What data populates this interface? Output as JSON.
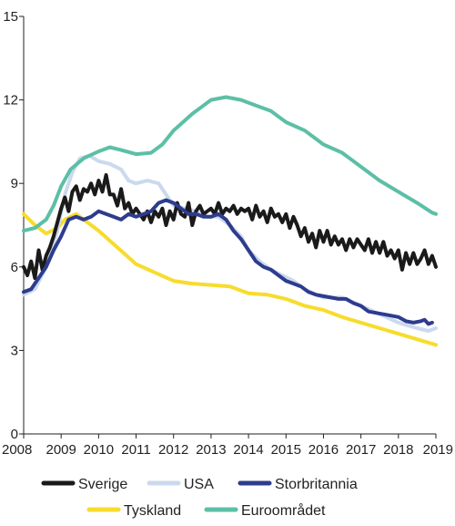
{
  "chart_data": {
    "type": "line",
    "title": "",
    "xlabel": "",
    "ylabel": "",
    "xlim": [
      2008,
      2019
    ],
    "ylim": [
      0,
      15
    ],
    "x_ticks": [
      "2008",
      "2009",
      "2010",
      "2011",
      "2012",
      "2013",
      "2014",
      "2015",
      "2016",
      "2017",
      "2018",
      "2019"
    ],
    "y_ticks": [
      "0",
      "3",
      "6",
      "9",
      "12",
      "15"
    ],
    "grid": false,
    "legend_position": "bottom",
    "series": [
      {
        "name": "Tyskland",
        "color": "#f7dc2c",
        "points": [
          [
            2008.0,
            7.9
          ],
          [
            2008.3,
            7.5
          ],
          [
            2008.6,
            7.2
          ],
          [
            2008.9,
            7.4
          ],
          [
            2009.1,
            7.7
          ],
          [
            2009.4,
            7.9
          ],
          [
            2009.7,
            7.6
          ],
          [
            2010.0,
            7.3
          ],
          [
            2010.5,
            6.7
          ],
          [
            2011.0,
            6.1
          ],
          [
            2011.5,
            5.8
          ],
          [
            2012.0,
            5.5
          ],
          [
            2012.5,
            5.4
          ],
          [
            2013.0,
            5.35
          ],
          [
            2013.5,
            5.3
          ],
          [
            2014.0,
            5.05
          ],
          [
            2014.5,
            5.0
          ],
          [
            2015.0,
            4.85
          ],
          [
            2015.5,
            4.6
          ],
          [
            2016.0,
            4.45
          ],
          [
            2016.5,
            4.2
          ],
          [
            2017.0,
            4.0
          ],
          [
            2017.5,
            3.8
          ],
          [
            2018.0,
            3.6
          ],
          [
            2018.5,
            3.4
          ],
          [
            2019.0,
            3.2
          ]
        ]
      },
      {
        "name": "USA",
        "color": "#cbd9ee",
        "points": [
          [
            2008.0,
            5.0
          ],
          [
            2008.3,
            5.2
          ],
          [
            2008.6,
            6.0
          ],
          [
            2008.9,
            7.3
          ],
          [
            2009.1,
            8.6
          ],
          [
            2009.3,
            9.4
          ],
          [
            2009.5,
            9.9
          ],
          [
            2009.75,
            10.0
          ],
          [
            2010.0,
            9.8
          ],
          [
            2010.3,
            9.7
          ],
          [
            2010.6,
            9.5
          ],
          [
            2010.8,
            9.1
          ],
          [
            2011.0,
            9.0
          ],
          [
            2011.3,
            9.1
          ],
          [
            2011.6,
            9.0
          ],
          [
            2011.8,
            8.6
          ],
          [
            2012.0,
            8.2
          ],
          [
            2012.3,
            8.1
          ],
          [
            2012.6,
            8.0
          ],
          [
            2012.9,
            7.8
          ],
          [
            2013.2,
            7.8
          ],
          [
            2013.5,
            7.5
          ],
          [
            2013.8,
            7.1
          ],
          [
            2014.0,
            6.6
          ],
          [
            2014.3,
            6.2
          ],
          [
            2014.6,
            5.9
          ],
          [
            2014.9,
            5.7
          ],
          [
            2015.2,
            5.5
          ],
          [
            2015.5,
            5.2
          ],
          [
            2015.8,
            5.0
          ],
          [
            2016.0,
            4.9
          ],
          [
            2016.5,
            4.9
          ],
          [
            2017.0,
            4.6
          ],
          [
            2017.5,
            4.3
          ],
          [
            2018.0,
            4.0
          ],
          [
            2018.5,
            3.8
          ],
          [
            2018.8,
            3.7
          ],
          [
            2019.0,
            3.8
          ]
        ]
      },
      {
        "name": "Euroområdet",
        "color": "#5cbfa6",
        "points": [
          [
            2008.0,
            7.3
          ],
          [
            2008.3,
            7.4
          ],
          [
            2008.6,
            7.7
          ],
          [
            2008.8,
            8.2
          ],
          [
            2009.0,
            8.9
          ],
          [
            2009.25,
            9.5
          ],
          [
            2009.6,
            9.9
          ],
          [
            2010.0,
            10.15
          ],
          [
            2010.3,
            10.3
          ],
          [
            2010.6,
            10.2
          ],
          [
            2011.0,
            10.05
          ],
          [
            2011.4,
            10.1
          ],
          [
            2011.7,
            10.4
          ],
          [
            2012.0,
            10.9
          ],
          [
            2012.5,
            11.5
          ],
          [
            2012.8,
            11.8
          ],
          [
            2013.0,
            12.0
          ],
          [
            2013.4,
            12.1
          ],
          [
            2013.8,
            12.0
          ],
          [
            2014.2,
            11.8
          ],
          [
            2014.6,
            11.6
          ],
          [
            2015.0,
            11.2
          ],
          [
            2015.5,
            10.9
          ],
          [
            2016.0,
            10.4
          ],
          [
            2016.5,
            10.1
          ],
          [
            2017.0,
            9.6
          ],
          [
            2017.5,
            9.1
          ],
          [
            2018.0,
            8.7
          ],
          [
            2018.5,
            8.3
          ],
          [
            2018.9,
            7.95
          ],
          [
            2019.0,
            7.9
          ]
        ]
      },
      {
        "name": "Sverige",
        "color": "#1a1a1a",
        "points": [
          [
            2008.0,
            6.0
          ],
          [
            2008.1,
            5.7
          ],
          [
            2008.2,
            6.2
          ],
          [
            2008.3,
            5.6
          ],
          [
            2008.4,
            6.6
          ],
          [
            2008.5,
            5.9
          ],
          [
            2008.6,
            6.4
          ],
          [
            2008.7,
            6.7
          ],
          [
            2008.8,
            7.1
          ],
          [
            2008.9,
            7.6
          ],
          [
            2009.0,
            8.1
          ],
          [
            2009.1,
            8.5
          ],
          [
            2009.2,
            8.0
          ],
          [
            2009.3,
            8.7
          ],
          [
            2009.4,
            8.9
          ],
          [
            2009.5,
            8.4
          ],
          [
            2009.6,
            8.8
          ],
          [
            2009.7,
            8.7
          ],
          [
            2009.8,
            9.0
          ],
          [
            2009.9,
            8.6
          ],
          [
            2010.0,
            9.1
          ],
          [
            2010.1,
            8.7
          ],
          [
            2010.2,
            9.3
          ],
          [
            2010.3,
            8.6
          ],
          [
            2010.4,
            8.6
          ],
          [
            2010.5,
            8.2
          ],
          [
            2010.6,
            8.8
          ],
          [
            2010.7,
            8.1
          ],
          [
            2010.8,
            8.3
          ],
          [
            2010.9,
            7.9
          ],
          [
            2011.0,
            8.1
          ],
          [
            2011.1,
            7.9
          ],
          [
            2011.2,
            7.7
          ],
          [
            2011.3,
            8.0
          ],
          [
            2011.4,
            7.6
          ],
          [
            2011.5,
            8.0
          ],
          [
            2011.6,
            7.8
          ],
          [
            2011.7,
            8.1
          ],
          [
            2011.8,
            7.5
          ],
          [
            2011.9,
            8.0
          ],
          [
            2012.0,
            7.7
          ],
          [
            2012.1,
            8.3
          ],
          [
            2012.2,
            7.9
          ],
          [
            2012.3,
            7.8
          ],
          [
            2012.4,
            8.3
          ],
          [
            2012.5,
            7.5
          ],
          [
            2012.6,
            8.0
          ],
          [
            2012.7,
            8.2
          ],
          [
            2012.8,
            7.9
          ],
          [
            2012.9,
            8.0
          ],
          [
            2013.0,
            8.1
          ],
          [
            2013.1,
            7.9
          ],
          [
            2013.2,
            8.3
          ],
          [
            2013.3,
            7.9
          ],
          [
            2013.4,
            8.1
          ],
          [
            2013.5,
            8.0
          ],
          [
            2013.6,
            8.2
          ],
          [
            2013.7,
            7.9
          ],
          [
            2013.8,
            8.1
          ],
          [
            2013.9,
            8.0
          ],
          [
            2014.0,
            8.1
          ],
          [
            2014.1,
            7.7
          ],
          [
            2014.2,
            8.2
          ],
          [
            2014.3,
            7.8
          ],
          [
            2014.4,
            8.0
          ],
          [
            2014.5,
            7.6
          ],
          [
            2014.6,
            8.1
          ],
          [
            2014.7,
            7.8
          ],
          [
            2014.8,
            7.9
          ],
          [
            2014.9,
            7.6
          ],
          [
            2015.0,
            7.9
          ],
          [
            2015.1,
            7.4
          ],
          [
            2015.2,
            7.8
          ],
          [
            2015.3,
            7.5
          ],
          [
            2015.4,
            7.1
          ],
          [
            2015.5,
            7.4
          ],
          [
            2015.6,
            6.9
          ],
          [
            2015.7,
            7.2
          ],
          [
            2015.8,
            6.7
          ],
          [
            2015.9,
            7.3
          ],
          [
            2016.0,
            6.9
          ],
          [
            2016.1,
            7.3
          ],
          [
            2016.2,
            6.8
          ],
          [
            2016.3,
            7.1
          ],
          [
            2016.4,
            6.8
          ],
          [
            2016.5,
            7.0
          ],
          [
            2016.6,
            6.6
          ],
          [
            2016.7,
            7.0
          ],
          [
            2016.8,
            6.7
          ],
          [
            2016.9,
            7.0
          ],
          [
            2017.0,
            6.8
          ],
          [
            2017.1,
            6.6
          ],
          [
            2017.2,
            7.0
          ],
          [
            2017.3,
            6.5
          ],
          [
            2017.4,
            6.9
          ],
          [
            2017.5,
            6.5
          ],
          [
            2017.6,
            6.9
          ],
          [
            2017.7,
            6.4
          ],
          [
            2017.8,
            6.6
          ],
          [
            2017.9,
            6.3
          ],
          [
            2018.0,
            6.6
          ],
          [
            2018.1,
            5.9
          ],
          [
            2018.2,
            6.5
          ],
          [
            2018.3,
            6.1
          ],
          [
            2018.4,
            6.5
          ],
          [
            2018.5,
            6.1
          ],
          [
            2018.6,
            6.3
          ],
          [
            2018.7,
            6.6
          ],
          [
            2018.8,
            6.1
          ],
          [
            2018.9,
            6.4
          ],
          [
            2019.0,
            6.0
          ]
        ]
      },
      {
        "name": "Storbritannia",
        "color": "#2e3c8e",
        "points": [
          [
            2008.0,
            5.1
          ],
          [
            2008.2,
            5.2
          ],
          [
            2008.4,
            5.6
          ],
          [
            2008.6,
            6.0
          ],
          [
            2008.8,
            6.6
          ],
          [
            2009.0,
            7.1
          ],
          [
            2009.2,
            7.7
          ],
          [
            2009.4,
            7.8
          ],
          [
            2009.6,
            7.7
          ],
          [
            2009.8,
            7.8
          ],
          [
            2010.0,
            8.0
          ],
          [
            2010.2,
            7.9
          ],
          [
            2010.4,
            7.8
          ],
          [
            2010.6,
            7.7
          ],
          [
            2010.8,
            7.9
          ],
          [
            2011.0,
            7.8
          ],
          [
            2011.2,
            7.9
          ],
          [
            2011.4,
            8.0
          ],
          [
            2011.6,
            8.3
          ],
          [
            2011.8,
            8.4
          ],
          [
            2012.0,
            8.3
          ],
          [
            2012.2,
            8.1
          ],
          [
            2012.4,
            7.9
          ],
          [
            2012.6,
            7.9
          ],
          [
            2012.8,
            7.8
          ],
          [
            2013.0,
            7.8
          ],
          [
            2013.2,
            7.9
          ],
          [
            2013.4,
            7.7
          ],
          [
            2013.6,
            7.3
          ],
          [
            2013.8,
            7.0
          ],
          [
            2014.0,
            6.6
          ],
          [
            2014.2,
            6.2
          ],
          [
            2014.4,
            6.0
          ],
          [
            2014.6,
            5.9
          ],
          [
            2014.8,
            5.7
          ],
          [
            2015.0,
            5.5
          ],
          [
            2015.2,
            5.4
          ],
          [
            2015.4,
            5.3
          ],
          [
            2015.6,
            5.1
          ],
          [
            2015.8,
            5.0
          ],
          [
            2016.0,
            4.95
          ],
          [
            2016.2,
            4.9
          ],
          [
            2016.4,
            4.85
          ],
          [
            2016.6,
            4.85
          ],
          [
            2016.8,
            4.7
          ],
          [
            2017.0,
            4.6
          ],
          [
            2017.2,
            4.4
          ],
          [
            2017.4,
            4.35
          ],
          [
            2017.6,
            4.3
          ],
          [
            2017.8,
            4.25
          ],
          [
            2018.0,
            4.2
          ],
          [
            2018.2,
            4.05
          ],
          [
            2018.4,
            4.0
          ],
          [
            2018.6,
            4.05
          ],
          [
            2018.7,
            4.1
          ],
          [
            2018.8,
            3.95
          ],
          [
            2018.9,
            4.0
          ]
        ]
      }
    ],
    "legend": [
      {
        "label": "Sverige",
        "color": "#1a1a1a"
      },
      {
        "label": "USA",
        "color": "#cbd9ee"
      },
      {
        "label": "Storbritannia",
        "color": "#2e3c8e"
      },
      {
        "label": "Tyskland",
        "color": "#f7dc2c"
      },
      {
        "label": "Euroområdet",
        "color": "#5cbfa6"
      }
    ]
  }
}
